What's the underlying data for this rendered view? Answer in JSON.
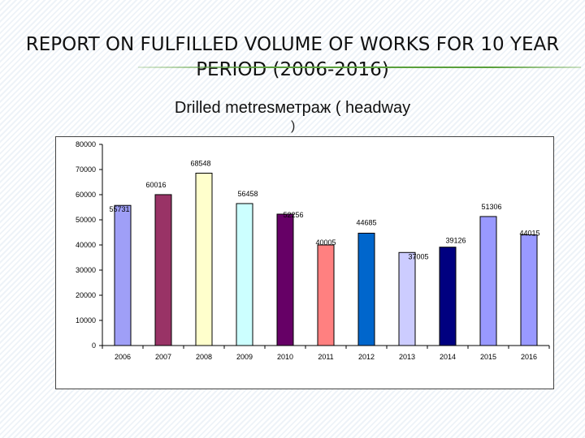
{
  "slide": {
    "title": "REPORT ON FULFILLED VOLUME OF WORKS FOR 10 YEAR PERIOD (2006-2016)",
    "subtitle": "Drilled metresметраж ( headway",
    "subtitle_tail": ")"
  },
  "colors": {
    "bars": [
      "#9f9ff7",
      "#993366",
      "#ffffcc",
      "#ccffff",
      "#660066",
      "#ff8080",
      "#0066cc",
      "#ccccff",
      "#000080",
      "#9999ff",
      "#9999ff"
    ],
    "title_rule": "#5aa03c"
  },
  "chart_data": {
    "type": "bar",
    "title": "Drilled metresметраж ( headway )",
    "categories": [
      "2006",
      "2007",
      "2008",
      "2009",
      "2010",
      "2011",
      "2012",
      "2013",
      "2014",
      "2015",
      "2016"
    ],
    "values": [
      55731,
      60016,
      68548,
      56458,
      52256,
      40005,
      44685,
      37005,
      39126,
      51306,
      44015
    ],
    "value_labels": [
      "55731",
      "60016",
      "68548",
      "56458",
      "52256",
      "40005",
      "44685",
      "37005",
      "39126",
      "51306",
      "44015"
    ],
    "ylim": [
      0,
      80000
    ],
    "yticks": [
      0,
      10000,
      20000,
      30000,
      40000,
      50000,
      60000,
      70000,
      80000
    ],
    "ytick_labels": [
      "0",
      "10000",
      "20000",
      "30000",
      "40000",
      "50000",
      "60000",
      "70000",
      "80000"
    ],
    "xlabel": "",
    "ylabel": "",
    "grid": false,
    "legend": "none"
  }
}
